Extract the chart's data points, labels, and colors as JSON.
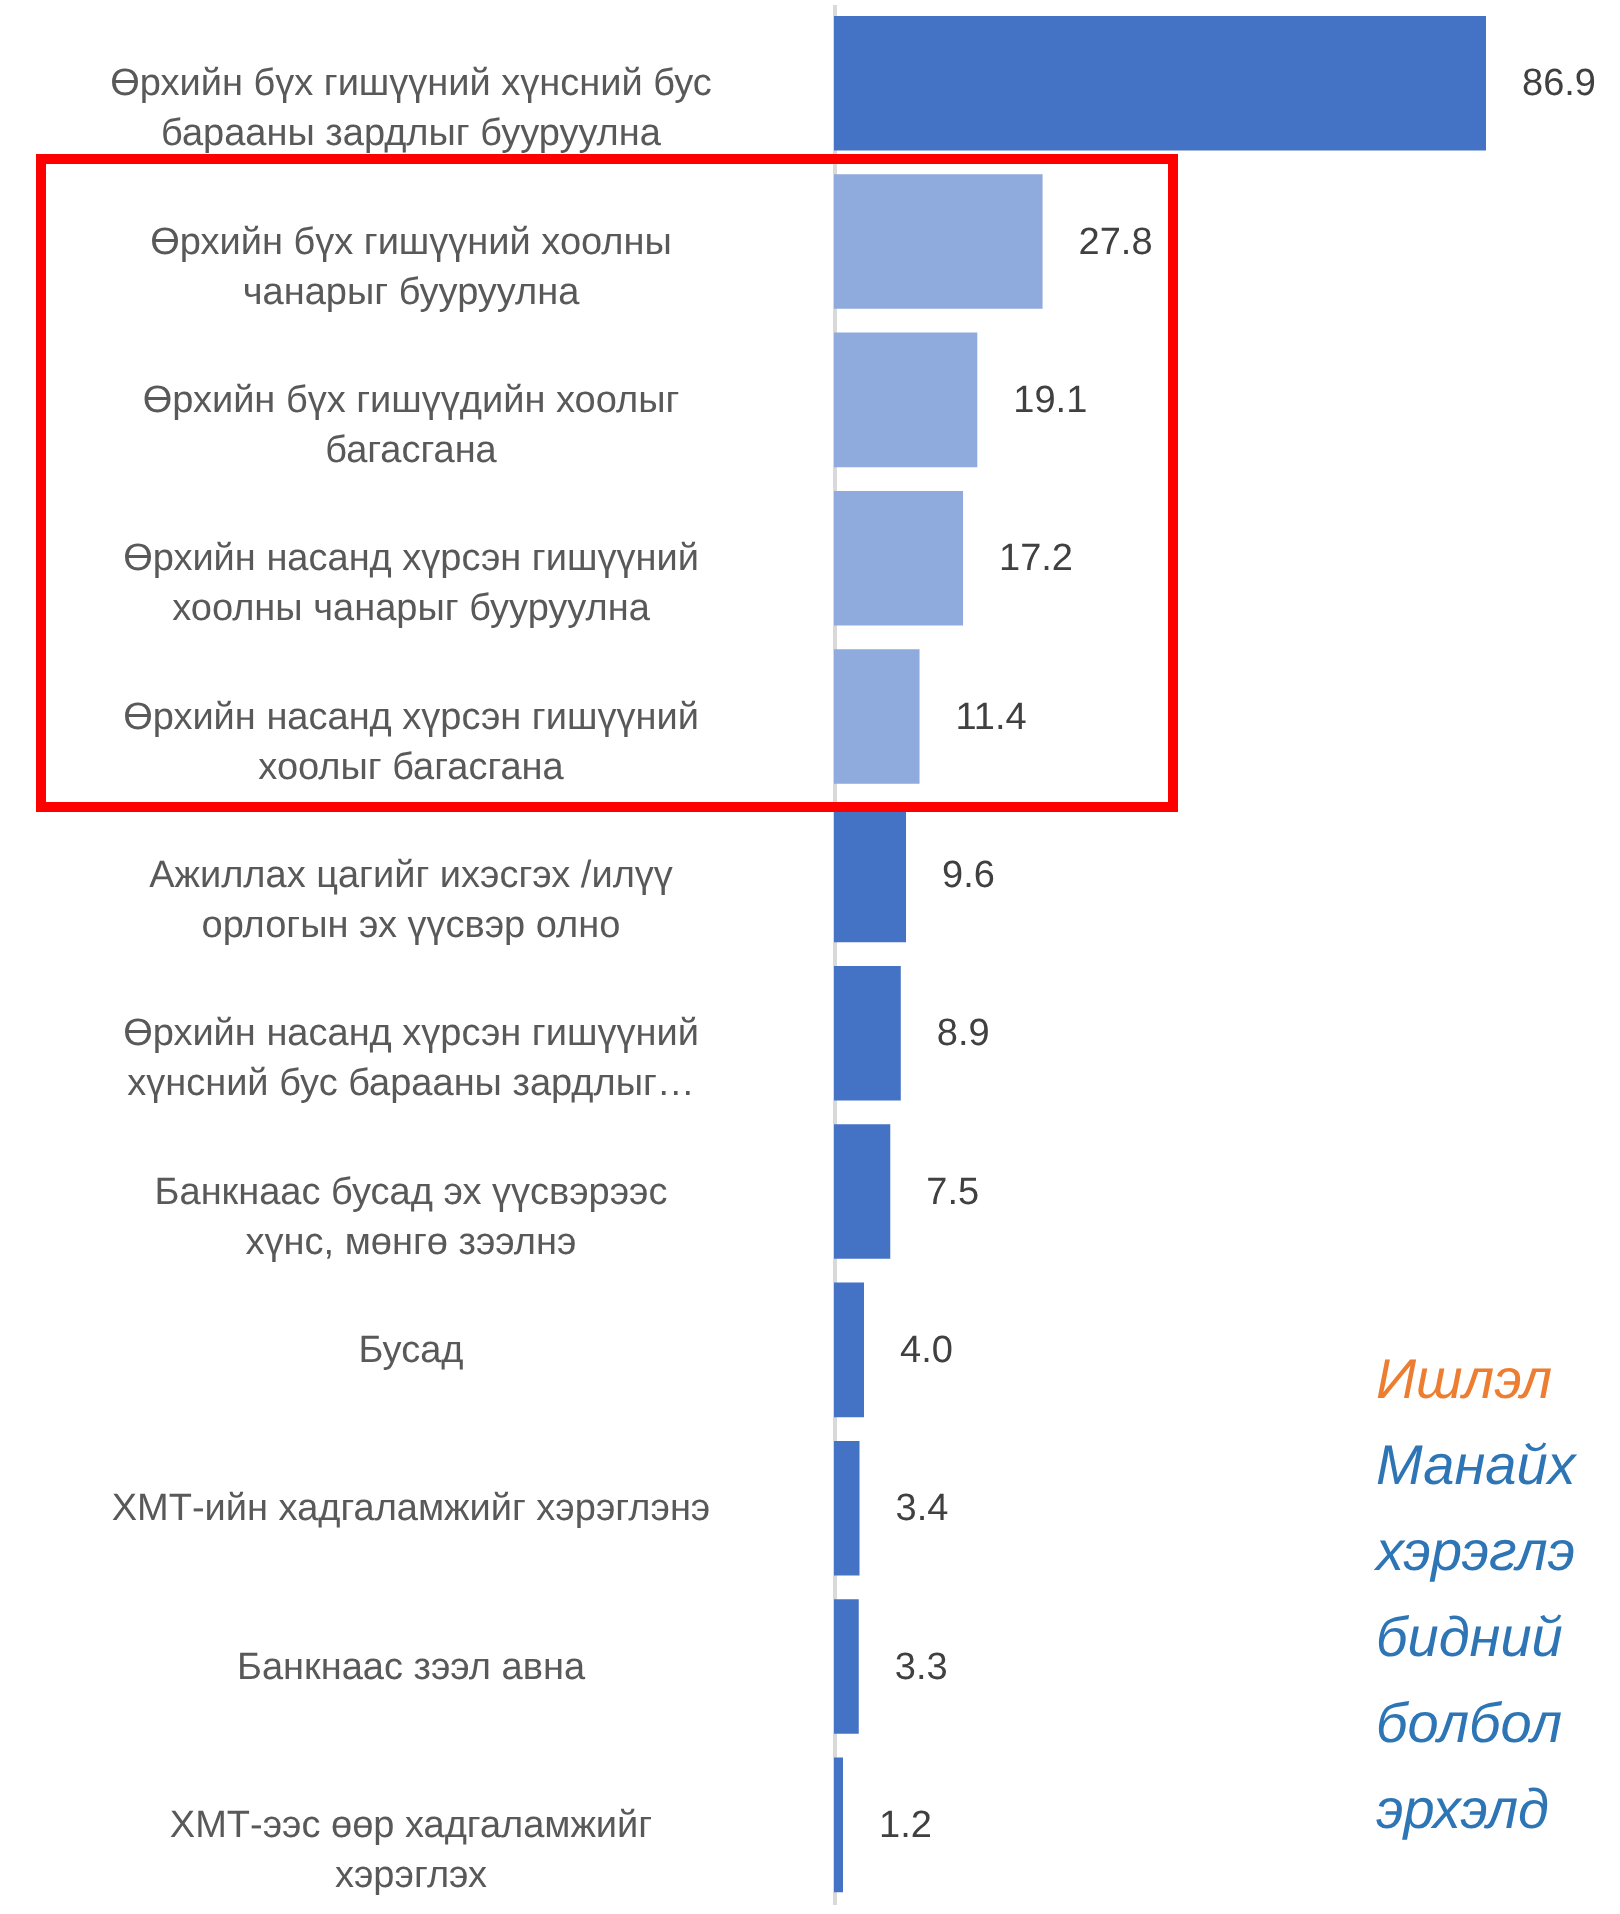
{
  "chart_data": {
    "type": "bar",
    "orientation": "horizontal",
    "value_labels": [
      "86.9",
      "27.8",
      "19.1",
      "17.2",
      "11.4",
      "9.6",
      "8.9",
      "7.5",
      "4.0",
      "3.4",
      "3.3",
      "1.2"
    ],
    "categories": [
      "Өрхийн бүх гишүүний хүнсний бус барааны зардлыг бууруулна",
      "Өрхийн бүх гишүүний хоолны чанарыг бууруулна",
      "Өрхийн бүх гишүүдийн хоолыг багасгана",
      "Өрхийн насанд хүрсэн гишүүний хоолны чанарыг бууруулна",
      "Өрхийн насанд хүрсэн гишүүний хоолыг багасгана",
      "Ажиллах цагийг ихэсгэх /илүү орлогын эх үүсвэр олно",
      "Өрхийн насанд хүрсэн гишүүний хүнсний бус барааны зардлыг…",
      "Банкнаас бусад эх үүсвэрээс хүнс, мөнгө зээлнэ",
      "Бусад",
      "ХМТ-ийн хадгаламжийг хэрэглэнэ",
      "Банкнаас зээл авна",
      "ХМТ-ээс өөр хадгаламжийг хэрэглэх"
    ],
    "values": [
      86.9,
      27.8,
      19.1,
      17.2,
      11.4,
      9.6,
      8.9,
      7.5,
      4.0,
      3.4,
      3.3,
      1.2
    ],
    "colors": [
      "#4472c4",
      "#8faadc",
      "#8faadc",
      "#8faadc",
      "#8faadc",
      "#4472c4",
      "#4472c4",
      "#4472c4",
      "#4472c4",
      "#4472c4",
      "#4472c4",
      "#4472c4"
    ],
    "annotations": [
      "Ишлэл",
      "Манайх",
      "хэрэглэ",
      "бидний",
      "болбол",
      "эрхэлд"
    ]
  }
}
